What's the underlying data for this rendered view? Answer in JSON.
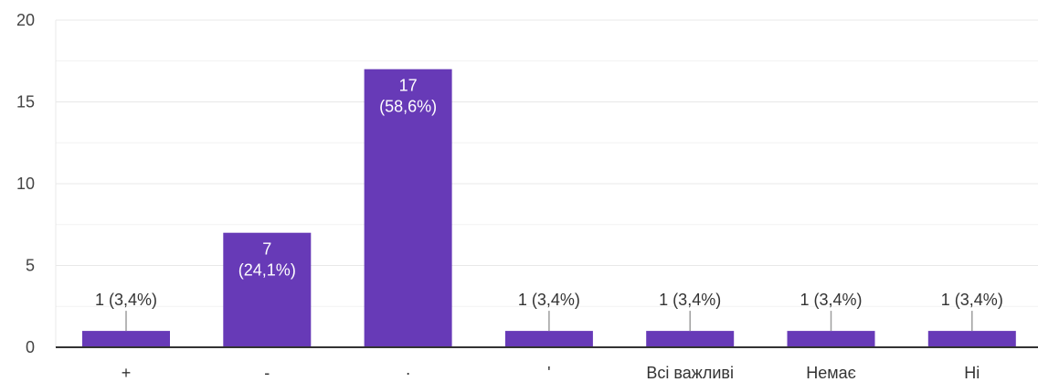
{
  "chart_data": {
    "type": "bar",
    "categories": [
      "+",
      "-",
      "·",
      "'",
      "Всі важливі",
      "Немає",
      "Ні"
    ],
    "values": [
      1,
      7,
      17,
      1,
      1,
      1,
      1
    ],
    "data_labels": [
      [
        "1 (3,4%)"
      ],
      [
        "7",
        "(24,1%)"
      ],
      [
        "17",
        "(58,6%)"
      ],
      [
        "1 (3,4%)"
      ],
      [
        "1 (3,4%)"
      ],
      [
        "1 (3,4%)"
      ],
      [
        "1 (3,4%)"
      ]
    ],
    "ylim": [
      0,
      20
    ],
    "yticks": [
      0,
      5,
      10,
      15,
      20
    ],
    "grid": true,
    "colors": {
      "bar": "#673ab7",
      "grid": "#e8e8e8",
      "minor_grid": "#f2f2f2",
      "axis": "#333333",
      "leader": "#9e9e9e"
    }
  }
}
